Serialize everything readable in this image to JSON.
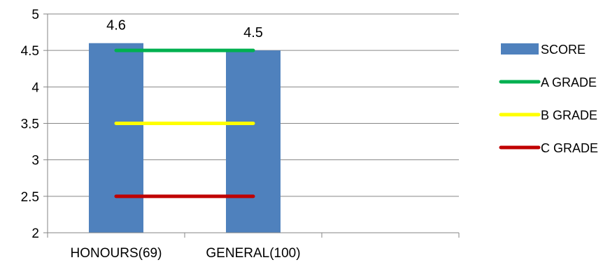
{
  "chart_data": {
    "type": "bar",
    "categories": [
      "HONOURS(69)",
      "GENERAL(100)"
    ],
    "series": [
      {
        "name": "SCORE",
        "type": "bar",
        "values": [
          4.6,
          4.5
        ],
        "color": "#4F81BD"
      },
      {
        "name": "A GRADE",
        "type": "line",
        "values": [
          4.5,
          4.5
        ],
        "color": "#00B050"
      },
      {
        "name": "B GRADE",
        "type": "line",
        "values": [
          3.5,
          3.5
        ],
        "color": "#FFFF00"
      },
      {
        "name": "C GRADE",
        "type": "line",
        "values": [
          2.5,
          2.5
        ],
        "color": "#C00000"
      }
    ],
    "data_labels": [
      "4.6",
      "4.5"
    ],
    "ylim": [
      2,
      5
    ],
    "yticks": [
      2,
      2.5,
      3,
      3.5,
      4,
      4.5,
      5
    ],
    "ytick_labels": [
      "2",
      "2.5",
      "3",
      "3.5",
      "4",
      "4.5",
      "5"
    ],
    "grid": true,
    "legend_position": "right"
  }
}
